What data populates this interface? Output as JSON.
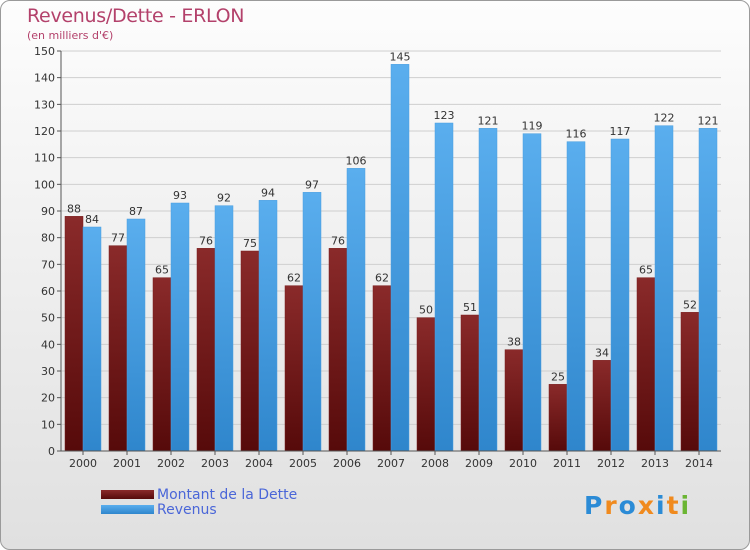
{
  "title": "Revenus/Dette - ERLON",
  "subtitle": "(en milliers d'€)",
  "logo": {
    "text": "Proxiti",
    "letter_colors": [
      "#2b8bd6",
      "#f08a1e",
      "#2b8bd6",
      "#f08a1e",
      "#2b8bd6",
      "#f08a1e",
      "#6bb533"
    ]
  },
  "colors": {
    "dette": "#7a1e1e",
    "revenus": "#4a9ee0",
    "title": "#b3416b",
    "legend_text": "#4a66d8"
  },
  "chart_data": {
    "type": "bar",
    "categories": [
      "2000",
      "2001",
      "2002",
      "2003",
      "2004",
      "2005",
      "2006",
      "2007",
      "2008",
      "2009",
      "2010",
      "2011",
      "2012",
      "2013",
      "2014"
    ],
    "series": [
      {
        "name": "Montant de la Dette",
        "values": [
          88,
          77,
          65,
          76,
          75,
          62,
          76,
          62,
          50,
          51,
          38,
          25,
          34,
          65,
          52
        ]
      },
      {
        "name": "Revenus",
        "values": [
          84,
          87,
          93,
          92,
          94,
          97,
          106,
          145,
          123,
          121,
          119,
          116,
          117,
          122,
          121
        ]
      }
    ],
    "ylim": [
      0,
      150
    ],
    "yticks": [
      0,
      10,
      20,
      30,
      40,
      50,
      60,
      70,
      80,
      90,
      100,
      110,
      120,
      130,
      140,
      150
    ],
    "grid": true,
    "legend": "bottom-left"
  }
}
